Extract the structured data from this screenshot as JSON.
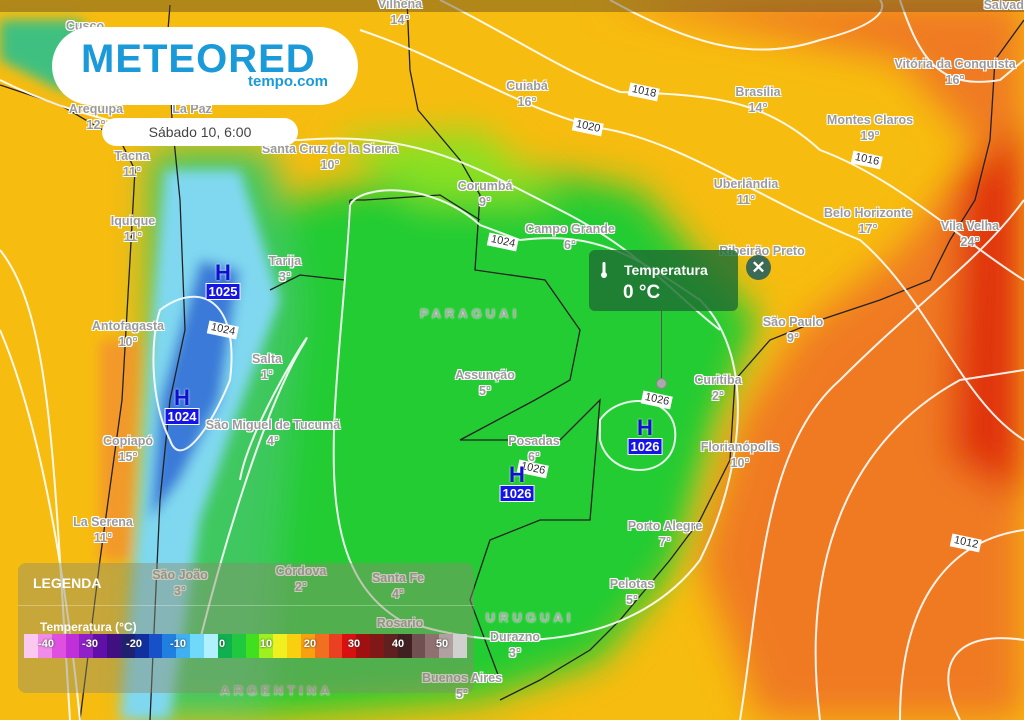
{
  "brand": {
    "name": "METEORED",
    "site": "tempo.com",
    "accent": "#1a9ad9"
  },
  "timestamp": "Sábado 10, 6:00",
  "cities": [
    {
      "name": "Vilhena",
      "temp": "14°"
    },
    {
      "name": "Cusco",
      "temp": ""
    },
    {
      "name": "Arequipa",
      "temp": "12°"
    },
    {
      "name": "La Paz",
      "temp": ""
    },
    {
      "name": "Santa Cruz de la Sierra",
      "temp": "10°"
    },
    {
      "name": "Tacna",
      "temp": "11°"
    },
    {
      "name": "Iquique",
      "temp": "11°"
    },
    {
      "name": "Corumbá",
      "temp": "9°"
    },
    {
      "name": "Cuiabá",
      "temp": "16°"
    },
    {
      "name": "Brasília",
      "temp": "14°"
    },
    {
      "name": "Vitória da Conquista",
      "temp": "16°"
    },
    {
      "name": "Montes Claros",
      "temp": "19°"
    },
    {
      "name": "Uberlândia",
      "temp": "11°"
    },
    {
      "name": "Belo Horizonte",
      "temp": "17°"
    },
    {
      "name": "Vila Velha",
      "temp": "24°"
    },
    {
      "name": "Campo Grande",
      "temp": "6°"
    },
    {
      "name": "Ribeirão Preto",
      "temp": ""
    },
    {
      "name": "Tarija",
      "temp": "3°"
    },
    {
      "name": "São Paulo",
      "temp": "9°"
    },
    {
      "name": "Antofagasta",
      "temp": "10°"
    },
    {
      "name": "Salta",
      "temp": "1°"
    },
    {
      "name": "Assunção",
      "temp": "5°"
    },
    {
      "name": "Curitiba",
      "temp": "2°"
    },
    {
      "name": "São Miguel de Tucumã",
      "temp": "4°"
    },
    {
      "name": "Copiapó",
      "temp": "15°"
    },
    {
      "name": "Posadas",
      "temp": "6°"
    },
    {
      "name": "Florianópolis",
      "temp": "10°"
    },
    {
      "name": "La Serena",
      "temp": "11°"
    },
    {
      "name": "Porto Alegre",
      "temp": "7°"
    },
    {
      "name": "Córdova",
      "temp": "2°"
    },
    {
      "name": "São João",
      "temp": "3°"
    },
    {
      "name": "Santa Fe",
      "temp": "4°"
    },
    {
      "name": "Pelotas",
      "temp": "5°"
    },
    {
      "name": "Rosario",
      "temp": ""
    },
    {
      "name": "Durazno",
      "temp": "3°"
    },
    {
      "name": "Buenos Aires",
      "temp": "5°"
    },
    {
      "name": "Salvador",
      "temp": ""
    }
  ],
  "countries": [
    "PARAGUAI",
    "URUGUAI",
    "ARGENTINA"
  ],
  "isobar_labels": [
    "1018",
    "1020",
    "1016",
    "1024",
    "1024",
    "1026",
    "1026",
    "1012"
  ],
  "pressure_centers": [
    {
      "type": "H",
      "value": "1025"
    },
    {
      "type": "H",
      "value": "1024"
    },
    {
      "type": "H",
      "value": "1026"
    },
    {
      "type": "H",
      "value": "1026"
    }
  ],
  "tooltip": {
    "icon": "thermometer-icon",
    "label": "Temperatura",
    "value": "0 °C"
  },
  "legend": {
    "title": "LEGENDA",
    "variable": "Temperatura (°C)",
    "ticks": [
      "-40",
      "-30",
      "-20",
      "-10",
      "0",
      "10",
      "20",
      "30",
      "40",
      "50"
    ],
    "colors": [
      "#fbc8f0",
      "#f08ce8",
      "#e050e0",
      "#c030d8",
      "#9020c8",
      "#6010a8",
      "#401080",
      "#202070",
      "#1030a0",
      "#1850c8",
      "#2080e0",
      "#40b0f0",
      "#70d8f8",
      "#b0f0ff",
      "#10b050",
      "#20c840",
      "#40e020",
      "#a0f020",
      "#f0f020",
      "#f8d010",
      "#f8a010",
      "#f07020",
      "#e84020",
      "#d81010",
      "#a01010",
      "#801818",
      "#602020",
      "#402020",
      "#705050",
      "#907070",
      "#b0a0a0",
      "#d0d0d0"
    ]
  }
}
